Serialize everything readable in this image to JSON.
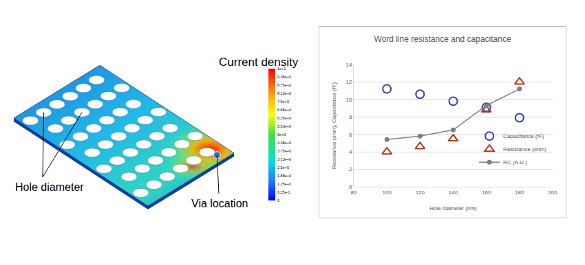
{
  "chart_data": {
    "type": "scatter",
    "title": "Word line resistance and capacitance",
    "x_label": "Hole diameter (nm)",
    "y_label": "Resistance (ohm), Capacitance (fF)",
    "x": [
      100,
      120,
      140,
      160,
      180
    ],
    "xlim": [
      80,
      200
    ],
    "xticks": [
      80,
      100,
      120,
      140,
      160,
      180,
      200
    ],
    "ylim": [
      0,
      14
    ],
    "yticks": [
      0,
      2,
      4,
      6,
      8,
      10,
      12,
      14
    ],
    "grid": true,
    "legend": "lower right",
    "series": [
      {
        "name": "Capacitance (fF)",
        "type": "scatter",
        "color": "#2f3fb0",
        "marker": "circle-open",
        "values": [
          11.2,
          10.6,
          9.8,
          9.1,
          7.9
        ]
      },
      {
        "name": "Resistance (ohm)",
        "type": "scatter",
        "color": "#b0361c",
        "marker": "triangle-up-open",
        "values": [
          4.0,
          4.6,
          5.5,
          8.8,
          12.0
        ]
      },
      {
        "name": "RC (A.U.)",
        "type": "line",
        "color": "#7f7f7f",
        "marker": "circle",
        "line_style": "solid",
        "values": [
          5.4,
          5.8,
          6.5,
          9.3,
          11.2
        ]
      }
    ]
  },
  "diagram": {
    "colorbar_title": "Current density",
    "colorbar_labels": [
      "1e+1",
      "9.38e+0",
      "8.75e+0",
      "8.13e+0",
      "7.5e+0",
      "6.88e+0",
      "6.25e+0",
      "5.63e+0",
      "5e+0",
      "4.38e+0",
      "3.75e+0",
      "3.13e+0",
      "2.5e+0",
      "1.88e+0",
      "1.25e+0",
      "6.25e-1",
      "0"
    ],
    "labels": {
      "hole": "Hole diameter",
      "via": "Via location"
    }
  }
}
